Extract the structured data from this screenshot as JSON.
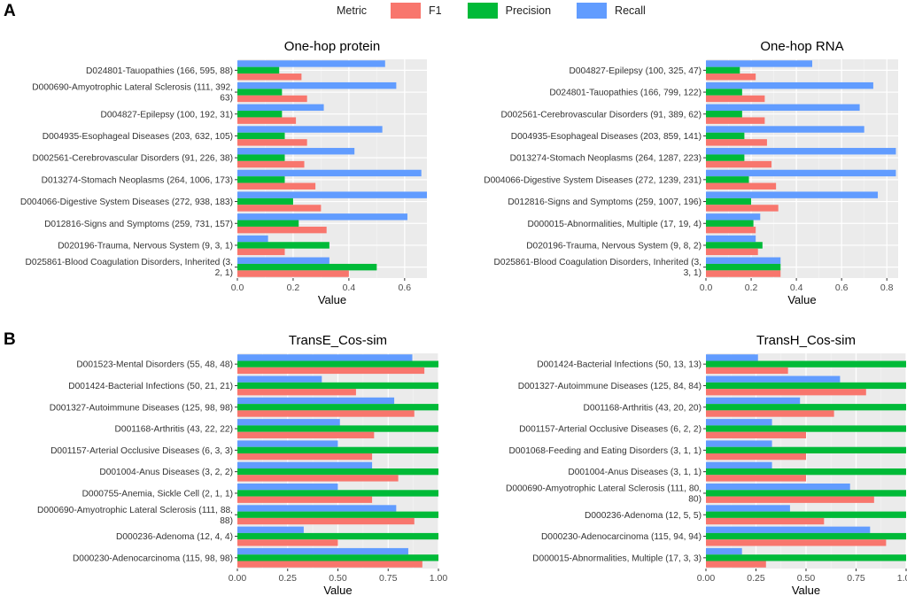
{
  "panels": {
    "a": "A",
    "b": "B"
  },
  "legend": {
    "title": "Metric",
    "items": [
      {
        "label": "F1",
        "color": "#F8766D"
      },
      {
        "label": "Precision",
        "color": "#00BA38"
      },
      {
        "label": "Recall",
        "color": "#619CFF"
      }
    ]
  },
  "chart_data": [
    {
      "type": "bar",
      "orientation": "horizontal",
      "title": "One-hop protein",
      "xlabel": "Value",
      "xlim": [
        0,
        0.68
      ],
      "xticks": [
        0.0,
        0.2,
        0.4,
        0.6
      ],
      "xtick_labels": [
        "0.0",
        "0.2",
        "0.4",
        "0.6"
      ],
      "categories": [
        [
          "D024801-Tauopathies (166, 595, 88)"
        ],
        [
          "D000690-Amyotrophic Lateral Sclerosis (111, 392,",
          "63)"
        ],
        [
          "D004827-Epilepsy (100, 192, 31)"
        ],
        [
          "D004935-Esophageal Diseases (203, 632, 105)"
        ],
        [
          "D002561-Cerebrovascular Disorders (91, 226, 38)"
        ],
        [
          "D013274-Stomach Neoplasms (264, 1006, 173)"
        ],
        [
          "D004066-Digestive System Diseases (272, 938, 183)"
        ],
        [
          "D012816-Signs and Symptoms (259, 731, 157)"
        ],
        [
          "D020196-Trauma, Nervous System (9, 3, 1)"
        ],
        [
          "D025861-Blood Coagulation Disorders, Inherited (3,",
          "2, 1)"
        ]
      ],
      "series": [
        {
          "name": "Recall",
          "values": [
            0.53,
            0.57,
            0.31,
            0.52,
            0.42,
            0.66,
            0.68,
            0.61,
            0.11,
            0.33
          ]
        },
        {
          "name": "Precision",
          "values": [
            0.15,
            0.16,
            0.16,
            0.17,
            0.17,
            0.17,
            0.2,
            0.22,
            0.33,
            0.5
          ]
        },
        {
          "name": "F1",
          "values": [
            0.23,
            0.25,
            0.21,
            0.25,
            0.24,
            0.28,
            0.3,
            0.32,
            0.17,
            0.4
          ]
        }
      ]
    },
    {
      "type": "bar",
      "orientation": "horizontal",
      "title": "One-hop RNA",
      "xlabel": "Value",
      "xlim": [
        0,
        0.85
      ],
      "xticks": [
        0.0,
        0.2,
        0.4,
        0.6,
        0.8
      ],
      "xtick_labels": [
        "0.0",
        "0.2",
        "0.4",
        "0.6",
        "0.8"
      ],
      "categories": [
        [
          "D004827-Epilepsy (100, 325, 47)"
        ],
        [
          "D024801-Tauopathies (166, 799, 122)"
        ],
        [
          "D002561-Cerebrovascular Disorders (91, 389, 62)"
        ],
        [
          "D004935-Esophageal Diseases (203, 859, 141)"
        ],
        [
          "D013274-Stomach Neoplasms (264, 1287, 223)"
        ],
        [
          "D004066-Digestive System Diseases (272, 1239, 231)"
        ],
        [
          "D012816-Signs and Symptoms (259, 1007, 196)"
        ],
        [
          "D000015-Abnormalities, Multiple (17, 19, 4)"
        ],
        [
          "D020196-Trauma, Nervous System (9, 8, 2)"
        ],
        [
          "D025861-Blood Coagulation Disorders, Inherited (3,",
          "3, 1)"
        ]
      ],
      "series": [
        {
          "name": "Recall",
          "values": [
            0.47,
            0.74,
            0.68,
            0.7,
            0.84,
            0.84,
            0.76,
            0.24,
            0.22,
            0.33
          ]
        },
        {
          "name": "Precision",
          "values": [
            0.15,
            0.16,
            0.16,
            0.17,
            0.17,
            0.19,
            0.2,
            0.21,
            0.25,
            0.33
          ]
        },
        {
          "name": "F1",
          "values": [
            0.22,
            0.26,
            0.26,
            0.27,
            0.29,
            0.31,
            0.32,
            0.22,
            0.23,
            0.33
          ]
        }
      ]
    },
    {
      "type": "bar",
      "orientation": "horizontal",
      "title": "TransE_Cos-sim",
      "xlabel": "Value",
      "xlim": [
        0,
        1.0
      ],
      "xticks": [
        0.0,
        0.25,
        0.5,
        0.75,
        1.0
      ],
      "xtick_labels": [
        "0.00",
        "0.25",
        "0.50",
        "0.75",
        "1.00"
      ],
      "categories": [
        [
          "D001523-Mental Disorders (55, 48, 48)"
        ],
        [
          "D001424-Bacterial Infections (50, 21, 21)"
        ],
        [
          "D001327-Autoimmune Diseases (125, 98, 98)"
        ],
        [
          "D001168-Arthritis (43, 22, 22)"
        ],
        [
          "D001157-Arterial Occlusive Diseases (6, 3, 3)"
        ],
        [
          "D001004-Anus Diseases (3, 2, 2)"
        ],
        [
          "D000755-Anemia, Sickle Cell (2, 1, 1)"
        ],
        [
          "D000690-Amyotrophic Lateral Sclerosis (111, 88,",
          "88)"
        ],
        [
          "D000236-Adenoma (12, 4, 4)"
        ],
        [
          "D000230-Adenocarcinoma (115, 98, 98)"
        ]
      ],
      "series": [
        {
          "name": "Recall",
          "values": [
            0.87,
            0.42,
            0.78,
            0.51,
            0.5,
            0.67,
            0.5,
            0.79,
            0.33,
            0.85
          ]
        },
        {
          "name": "Precision",
          "values": [
            1.0,
            1.0,
            1.0,
            1.0,
            1.0,
            1.0,
            1.0,
            1.0,
            1.0,
            1.0
          ]
        },
        {
          "name": "F1",
          "values": [
            0.93,
            0.59,
            0.88,
            0.68,
            0.67,
            0.8,
            0.67,
            0.88,
            0.5,
            0.92
          ]
        }
      ]
    },
    {
      "type": "bar",
      "orientation": "horizontal",
      "title": "TransH_Cos-sim",
      "xlabel": "Value",
      "xlim": [
        0,
        1.0
      ],
      "xticks": [
        0.0,
        0.25,
        0.5,
        0.75,
        1.0
      ],
      "xtick_labels": [
        "0.00",
        "0.25",
        "0.50",
        "0.75",
        "1.00"
      ],
      "categories": [
        [
          "D001424-Bacterial Infections (50, 13, 13)"
        ],
        [
          "D001327-Autoimmune Diseases (125, 84, 84)"
        ],
        [
          "D001168-Arthritis (43, 20, 20)"
        ],
        [
          "D001157-Arterial Occlusive Diseases (6, 2, 2)"
        ],
        [
          "D001068-Feeding and Eating Disorders (3, 1, 1)"
        ],
        [
          "D001004-Anus Diseases (3, 1, 1)"
        ],
        [
          "D000690-Amyotrophic Lateral Sclerosis (111, 80,",
          "80)"
        ],
        [
          "D000236-Adenoma (12, 5, 5)"
        ],
        [
          "D000230-Adenocarcinoma (115, 94, 94)"
        ],
        [
          "D000015-Abnormalities, Multiple (17, 3, 3)"
        ]
      ],
      "series": [
        {
          "name": "Recall",
          "values": [
            0.26,
            0.67,
            0.47,
            0.33,
            0.33,
            0.33,
            0.72,
            0.42,
            0.82,
            0.18
          ]
        },
        {
          "name": "Precision",
          "values": [
            1.0,
            1.0,
            1.0,
            1.0,
            1.0,
            1.0,
            1.0,
            1.0,
            1.0,
            1.0
          ]
        },
        {
          "name": "F1",
          "values": [
            0.41,
            0.8,
            0.64,
            0.5,
            0.5,
            0.5,
            0.84,
            0.59,
            0.9,
            0.3
          ]
        }
      ]
    }
  ]
}
